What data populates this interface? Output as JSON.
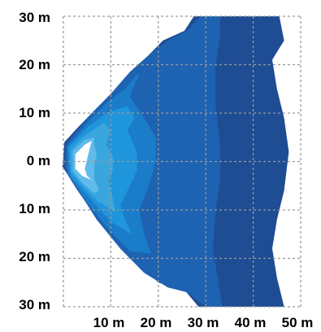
{
  "chart_data": {
    "type": "contour",
    "title": "",
    "xlabel": "",
    "ylabel": "",
    "x_ticks": [
      "10 m",
      "20 m",
      "30 m",
      "40 m",
      "50 m"
    ],
    "y_ticks": [
      "30 m",
      "20 m",
      "10 m",
      "0 m",
      "10 m",
      "20 m",
      "30 m"
    ],
    "xlim": [
      0,
      50
    ],
    "ylim": [
      -30,
      30
    ],
    "grid": true,
    "legend": "none",
    "colors": {
      "background": "#ffffff",
      "grid": "#9a9a9a",
      "levels": [
        "#1e4d94",
        "#1e62b2",
        "#1b7cc9",
        "#1f95db",
        "#3aa6de",
        "#60bbeb",
        "#ffffff"
      ]
    },
    "contours": [
      {
        "level": 1,
        "points": [
          [
            0.2,
            4.0
          ],
          [
            3,
            7
          ],
          [
            8,
            12
          ],
          [
            13,
            17
          ],
          [
            17,
            21
          ],
          [
            21,
            25
          ],
          [
            25.5,
            27
          ],
          [
            27.5,
            30
          ],
          [
            45.5,
            30
          ],
          [
            46.5,
            25
          ],
          [
            44,
            21
          ],
          [
            45,
            15
          ],
          [
            46.5,
            9
          ],
          [
            47.5,
            2
          ],
          [
            46.5,
            -6
          ],
          [
            45,
            -12
          ],
          [
            44,
            -18
          ],
          [
            45,
            -24
          ],
          [
            46.5,
            -30
          ],
          [
            28.5,
            -30
          ],
          [
            25.5,
            -26.5
          ],
          [
            20,
            -25
          ],
          [
            14,
            -19
          ],
          [
            8,
            -13
          ],
          [
            3,
            -6
          ],
          [
            -0.2,
            -1
          ],
          [
            0,
            1
          ]
        ]
      },
      {
        "level": 2,
        "points": [
          [
            0.5,
            3.5
          ],
          [
            5,
            9
          ],
          [
            10,
            14
          ],
          [
            14,
            18.5
          ],
          [
            18,
            22
          ],
          [
            22,
            25
          ],
          [
            26,
            27
          ],
          [
            29,
            30
          ],
          [
            33,
            30
          ],
          [
            33,
            26
          ],
          [
            32,
            19
          ],
          [
            32,
            12
          ],
          [
            33,
            4
          ],
          [
            33,
            -4
          ],
          [
            32,
            -11
          ],
          [
            31.5,
            -18
          ],
          [
            32.5,
            -24
          ],
          [
            33.5,
            -30
          ],
          [
            30,
            -30
          ],
          [
            26,
            -27
          ],
          [
            22,
            -26
          ],
          [
            17,
            -23
          ],
          [
            12,
            -18
          ],
          [
            7,
            -12
          ],
          [
            2.5,
            -5
          ],
          [
            0.3,
            -1
          ]
        ]
      },
      {
        "level": 3,
        "points": [
          [
            0.8,
            3.2
          ],
          [
            5,
            8
          ],
          [
            9,
            12
          ],
          [
            13,
            15
          ],
          [
            15.5,
            18
          ],
          [
            16,
            18
          ],
          [
            14,
            13.5
          ],
          [
            17,
            9
          ],
          [
            19.5,
            5
          ],
          [
            19.5,
            0
          ],
          [
            18,
            -5
          ],
          [
            16,
            -10
          ],
          [
            17,
            -15
          ],
          [
            18.5,
            -19
          ],
          [
            14,
            -18.5
          ],
          [
            9.5,
            -14
          ],
          [
            5,
            -8.5
          ],
          [
            0.8,
            -2.5
          ]
        ]
      },
      {
        "level": 4,
        "points": [
          [
            1,
            3
          ],
          [
            5,
            7
          ],
          [
            9,
            10
          ],
          [
            13.5,
            11.5
          ],
          [
            15,
            9
          ],
          [
            13.5,
            6.5
          ],
          [
            15.5,
            2
          ],
          [
            15.5,
            -2
          ],
          [
            13.5,
            -6
          ],
          [
            12,
            -9
          ],
          [
            13,
            -12
          ],
          [
            14.5,
            -15
          ],
          [
            10,
            -12.5
          ],
          [
            6,
            -8
          ],
          [
            1.5,
            -3
          ]
        ]
      },
      {
        "level": 5,
        "points": [
          [
            1.5,
            2.5
          ],
          [
            4,
            5
          ],
          [
            8.5,
            8
          ],
          [
            10,
            6.5
          ],
          [
            9,
            3.5
          ],
          [
            10.5,
            1
          ],
          [
            10.5,
            -1.5
          ],
          [
            9.5,
            -4
          ],
          [
            10.5,
            -8
          ],
          [
            11,
            -10.5
          ],
          [
            7,
            -8
          ],
          [
            4,
            -5
          ],
          [
            1.5,
            -2
          ]
        ]
      },
      {
        "level": 6,
        "points": [
          [
            2,
            2.2
          ],
          [
            4.5,
            4.5
          ],
          [
            6.5,
            5
          ],
          [
            6.5,
            3.5
          ],
          [
            7,
            1.5
          ],
          [
            6.5,
            -1
          ],
          [
            6.5,
            -3.5
          ],
          [
            7.5,
            -6
          ],
          [
            6.5,
            -6.5
          ],
          [
            4,
            -4.5
          ],
          [
            2,
            -2
          ]
        ]
      },
      {
        "level": 7,
        "points": [
          [
            2.5,
            1.5
          ],
          [
            4.5,
            3.5
          ],
          [
            6,
            4.3
          ],
          [
            5.5,
            2.5
          ],
          [
            5,
            0.5
          ],
          [
            4.5,
            -1.5
          ],
          [
            5,
            -3
          ],
          [
            6,
            -3.8
          ],
          [
            4,
            -3
          ],
          [
            2.5,
            -1.5
          ]
        ]
      }
    ]
  }
}
